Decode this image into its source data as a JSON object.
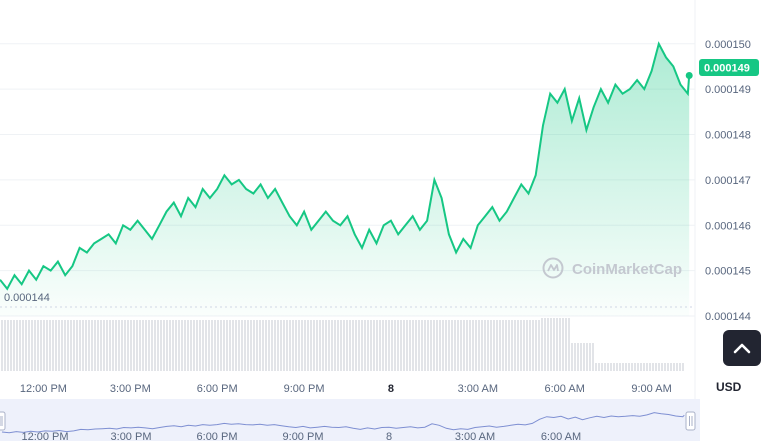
{
  "chart_data": {
    "type": "area",
    "currency": "USD",
    "watermark": "CoinMarketCap",
    "y_ticks": [
      "0.000150",
      "0.000149",
      "0.000148",
      "0.000147",
      "0.000146",
      "0.000145",
      "0.000144"
    ],
    "ylim": [
      0.000144,
      0.0001507
    ],
    "x_ticks": [
      "12:00 PM",
      "3:00 PM",
      "6:00 PM",
      "9:00 PM",
      "8",
      "3:00 AM",
      "6:00 AM",
      "9:00 AM"
    ],
    "x_tick_hours": [
      12,
      15,
      18,
      21,
      24,
      27,
      30,
      33
    ],
    "xlim_hours": [
      10.5,
      34.5
    ],
    "last_price_hour": 34.3,
    "current_price": "0.000149",
    "reference_price": "0.000144",
    "reference_value": 0.000144,
    "navigator_ticks": [
      "12:00 PM",
      "3:00 PM",
      "6:00 PM",
      "9:00 PM",
      "8",
      "3:00 AM",
      "6:00 AM"
    ],
    "series": [
      {
        "x_hours": [
          10.5,
          10.75,
          11.0,
          11.25,
          11.5,
          11.75,
          12.0,
          12.25,
          12.5,
          12.75,
          13.0,
          13.25,
          13.5,
          13.75,
          14.0,
          14.25,
          14.5,
          14.75,
          15.0,
          15.25,
          15.5,
          15.75,
          16.0,
          16.25,
          16.5,
          16.75,
          17.0,
          17.25,
          17.5,
          17.75,
          18.0,
          18.25,
          18.5,
          18.75,
          19.0,
          19.25,
          19.5,
          19.75,
          20.0,
          20.25,
          20.5,
          20.75,
          21.0,
          21.25,
          21.5,
          21.75,
          22.0,
          22.25,
          22.5,
          22.75,
          23.0,
          23.25,
          23.5,
          23.75,
          24.0,
          24.25,
          24.5,
          24.75,
          25.0,
          25.25,
          25.5,
          25.75,
          26.0,
          26.25,
          26.5,
          26.75,
          27.0,
          27.25,
          27.5,
          27.75,
          28.0,
          28.25,
          28.5,
          28.75,
          29.0,
          29.25,
          29.5,
          29.75,
          30.0,
          30.25,
          30.5,
          30.75,
          31.0,
          31.25,
          31.5,
          31.75,
          32.0,
          32.25,
          32.5,
          32.75,
          33.0,
          33.25,
          33.5,
          33.75,
          34.0,
          34.25,
          34.3
        ],
        "values": [
          0.0001448,
          0.0001446,
          0.0001449,
          0.0001447,
          0.000145,
          0.0001448,
          0.0001451,
          0.000145,
          0.0001452,
          0.0001449,
          0.0001451,
          0.0001455,
          0.0001454,
          0.0001456,
          0.0001457,
          0.0001458,
          0.0001456,
          0.000146,
          0.0001459,
          0.0001461,
          0.0001459,
          0.0001457,
          0.000146,
          0.0001463,
          0.0001465,
          0.0001462,
          0.0001466,
          0.0001464,
          0.0001468,
          0.0001466,
          0.0001468,
          0.0001471,
          0.0001469,
          0.000147,
          0.0001468,
          0.0001467,
          0.0001469,
          0.0001466,
          0.0001468,
          0.0001465,
          0.0001462,
          0.000146,
          0.0001463,
          0.0001459,
          0.0001461,
          0.0001463,
          0.0001461,
          0.000146,
          0.0001462,
          0.0001458,
          0.0001455,
          0.0001459,
          0.0001456,
          0.000146,
          0.0001461,
          0.0001458,
          0.000146,
          0.0001462,
          0.0001459,
          0.0001461,
          0.000147,
          0.0001466,
          0.0001458,
          0.0001454,
          0.0001457,
          0.0001455,
          0.000146,
          0.0001462,
          0.0001464,
          0.0001461,
          0.0001463,
          0.0001466,
          0.0001469,
          0.0001467,
          0.0001471,
          0.0001482,
          0.0001489,
          0.0001487,
          0.000149,
          0.0001483,
          0.0001488,
          0.0001481,
          0.0001486,
          0.000149,
          0.0001487,
          0.0001491,
          0.0001489,
          0.000149,
          0.0001492,
          0.000149,
          0.0001494,
          0.00015,
          0.0001497,
          0.0001495,
          0.0001491,
          0.0001489,
          0.0001493
        ]
      }
    ],
    "colors": {
      "line": "#16c784",
      "badge": "#16c784",
      "grid": "#eff2f5",
      "reference_line": "#cfd6e4",
      "volume": "#c4c8d0",
      "navigator_fill": "#eef1fb",
      "navigator_line": "#7e8fd2"
    }
  }
}
